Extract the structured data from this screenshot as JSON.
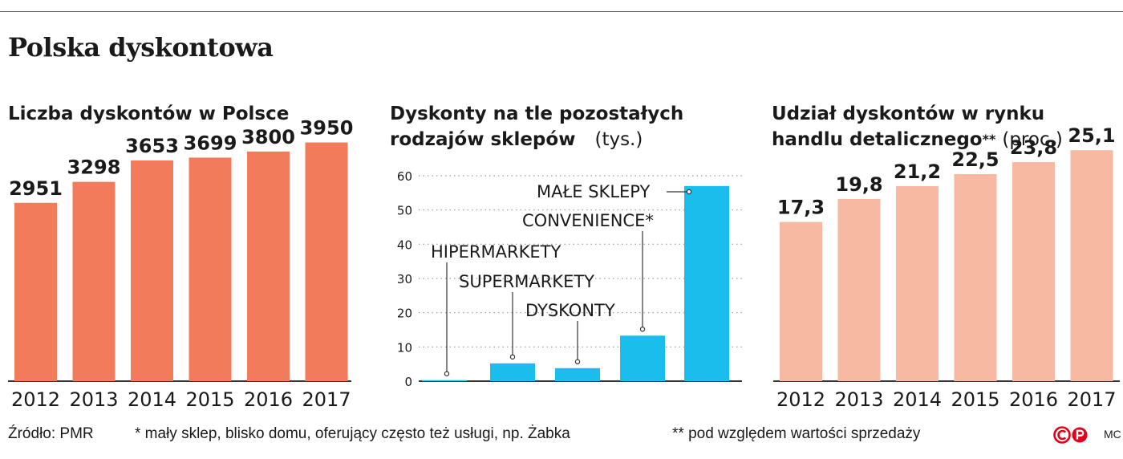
{
  "title": "Polska dyskontowa",
  "chart_data": [
    {
      "type": "bar",
      "title": "Liczba dyskontów w Polsce",
      "categories": [
        "2012",
        "2013",
        "2014",
        "2015",
        "2016",
        "2017"
      ],
      "values": [
        2951,
        3298,
        3653,
        3699,
        3800,
        3950
      ],
      "data_labels": [
        "2951",
        "3298",
        "3653",
        "3699",
        "3800",
        "3950"
      ],
      "color": "#f27b5c",
      "ylim": [
        0,
        4050
      ]
    },
    {
      "type": "bar",
      "title": "Dyskonty na tle pozostałych rodzajów sklepów",
      "title_line1": "Dyskonty na tle pozostałych",
      "title_line2": "rodzajów sklepów",
      "unit": "(tys.)",
      "categories": [
        "HIPERMARKETY",
        "SUPERMARKETY",
        "DYSKONTY",
        "CONVENIENCE*",
        "MAŁE SKLEPY"
      ],
      "values": [
        0.3,
        5.2,
        3.8,
        13.3,
        57.0
      ],
      "yticks": [
        "0",
        "10",
        "20",
        "30",
        "40",
        "50",
        "60"
      ],
      "ylim": [
        0,
        60
      ],
      "grid": true,
      "color": "#1bbdec"
    },
    {
      "type": "bar",
      "title": "Udział dyskontów w rynku handlu detalicznego",
      "title_line1": "Udział dyskontów w rynku",
      "title_line2": "handlu detalicznego",
      "title_stars": "**",
      "unit": "(proc.)",
      "categories": [
        "2012",
        "2013",
        "2014",
        "2015",
        "2016",
        "2017"
      ],
      "values": [
        17.3,
        19.8,
        21.2,
        22.5,
        23.8,
        25.1
      ],
      "data_labels": [
        "17,3",
        "19,8",
        "21,2",
        "22,5",
        "23,8",
        "25,1"
      ],
      "color": "#f7b9a1",
      "ylim": [
        0,
        26.6
      ]
    }
  ],
  "footer": {
    "source": "Źródło: PMR",
    "note1": "* mały sklep, blisko domu, oferujący często też usługi, np. Żabka",
    "note2": "** pod względem wartości sprzedaży",
    "author": "MC"
  }
}
